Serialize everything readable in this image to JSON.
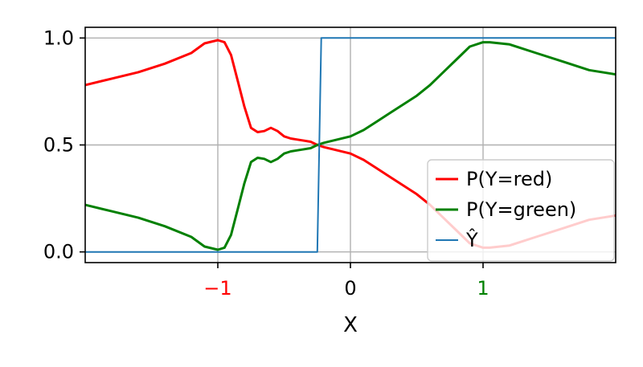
{
  "chart_data": {
    "type": "line",
    "title": "",
    "xlabel": "X",
    "ylabel": "",
    "xlim": [
      -2,
      2
    ],
    "ylim": [
      -0.05,
      1.05
    ],
    "grid": true,
    "legend_position": "lower-right",
    "x_ticks": [
      {
        "value": -1,
        "label": "−1",
        "color": "#ff0000"
      },
      {
        "value": 0,
        "label": "0",
        "color": "#000000"
      },
      {
        "value": 1,
        "label": "1",
        "color": "#008000"
      }
    ],
    "y_ticks": [
      {
        "value": 0.0,
        "label": "0.0"
      },
      {
        "value": 0.5,
        "label": "0.5"
      },
      {
        "value": 1.0,
        "label": "1.0"
      }
    ],
    "series": [
      {
        "name": "P(Y=red)",
        "color": "#ff0000",
        "points": [
          [
            -2.0,
            0.78
          ],
          [
            -1.8,
            0.81
          ],
          [
            -1.6,
            0.84
          ],
          [
            -1.4,
            0.88
          ],
          [
            -1.2,
            0.93
          ],
          [
            -1.1,
            0.975
          ],
          [
            -1.0,
            0.99
          ],
          [
            -0.95,
            0.98
          ],
          [
            -0.9,
            0.92
          ],
          [
            -0.85,
            0.8
          ],
          [
            -0.8,
            0.68
          ],
          [
            -0.75,
            0.58
          ],
          [
            -0.7,
            0.56
          ],
          [
            -0.65,
            0.565
          ],
          [
            -0.6,
            0.58
          ],
          [
            -0.55,
            0.565
          ],
          [
            -0.5,
            0.54
          ],
          [
            -0.45,
            0.53
          ],
          [
            -0.4,
            0.525
          ],
          [
            -0.3,
            0.515
          ],
          [
            -0.25,
            0.5
          ],
          [
            -0.2,
            0.49
          ],
          [
            -0.1,
            0.475
          ],
          [
            0.0,
            0.46
          ],
          [
            0.1,
            0.43
          ],
          [
            0.2,
            0.39
          ],
          [
            0.3,
            0.35
          ],
          [
            0.4,
            0.31
          ],
          [
            0.5,
            0.27
          ],
          [
            0.6,
            0.22
          ],
          [
            0.7,
            0.16
          ],
          [
            0.8,
            0.1
          ],
          [
            0.9,
            0.04
          ],
          [
            1.0,
            0.02
          ],
          [
            1.05,
            0.02
          ],
          [
            1.2,
            0.03
          ],
          [
            1.4,
            0.07
          ],
          [
            1.6,
            0.11
          ],
          [
            1.8,
            0.15
          ],
          [
            2.0,
            0.17
          ]
        ]
      },
      {
        "name": "P(Y=green)",
        "color": "#008000",
        "points": [
          [
            -2.0,
            0.22
          ],
          [
            -1.8,
            0.19
          ],
          [
            -1.6,
            0.16
          ],
          [
            -1.4,
            0.12
          ],
          [
            -1.2,
            0.07
          ],
          [
            -1.1,
            0.025
          ],
          [
            -1.0,
            0.01
          ],
          [
            -0.95,
            0.02
          ],
          [
            -0.9,
            0.08
          ],
          [
            -0.85,
            0.2
          ],
          [
            -0.8,
            0.32
          ],
          [
            -0.75,
            0.42
          ],
          [
            -0.7,
            0.44
          ],
          [
            -0.65,
            0.435
          ],
          [
            -0.6,
            0.42
          ],
          [
            -0.55,
            0.435
          ],
          [
            -0.5,
            0.46
          ],
          [
            -0.45,
            0.47
          ],
          [
            -0.4,
            0.475
          ],
          [
            -0.3,
            0.485
          ],
          [
            -0.25,
            0.5
          ],
          [
            -0.2,
            0.51
          ],
          [
            -0.1,
            0.525
          ],
          [
            0.0,
            0.54
          ],
          [
            0.1,
            0.57
          ],
          [
            0.2,
            0.61
          ],
          [
            0.3,
            0.65
          ],
          [
            0.4,
            0.69
          ],
          [
            0.5,
            0.73
          ],
          [
            0.6,
            0.78
          ],
          [
            0.7,
            0.84
          ],
          [
            0.8,
            0.9
          ],
          [
            0.9,
            0.96
          ],
          [
            1.0,
            0.98
          ],
          [
            1.05,
            0.98
          ],
          [
            1.2,
            0.97
          ],
          [
            1.4,
            0.93
          ],
          [
            1.6,
            0.89
          ],
          [
            1.8,
            0.85
          ],
          [
            2.0,
            0.83
          ]
        ]
      },
      {
        "name": "Ŷ",
        "color": "#1f77b4",
        "points": [
          [
            -2.0,
            0.0
          ],
          [
            -0.25,
            0.0
          ],
          [
            -0.22,
            1.0
          ],
          [
            2.0,
            1.0
          ]
        ]
      }
    ]
  }
}
